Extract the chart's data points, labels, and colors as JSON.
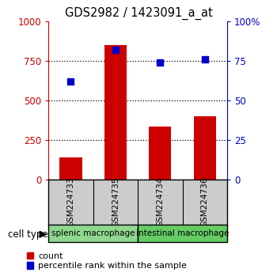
{
  "title": "GDS2982 / 1423091_a_at",
  "categories": [
    "GSM224733",
    "GSM224735",
    "GSM224734",
    "GSM224736"
  ],
  "bar_values": [
    140,
    850,
    335,
    400
  ],
  "dot_values": [
    62,
    82,
    74,
    76
  ],
  "bar_color": "#cc0000",
  "dot_color": "#0000cc",
  "ylim_left": [
    0,
    1000
  ],
  "ylim_right": [
    0,
    100
  ],
  "yticks_left": [
    0,
    250,
    500,
    750,
    1000
  ],
  "yticks_right": [
    0,
    25,
    50,
    75,
    100
  ],
  "ytick_labels_left": [
    "0",
    "250",
    "500",
    "750",
    "1000"
  ],
  "ytick_labels_right": [
    "0",
    "25",
    "50",
    "75",
    "100%"
  ],
  "cell_groups": [
    {
      "label": "splenic macrophage",
      "indices": [
        0,
        1
      ],
      "color": "#90d890"
    },
    {
      "label": "intestinal macrophage",
      "indices": [
        2,
        3
      ],
      "color": "#66cc66"
    }
  ],
  "cell_type_label": "cell type",
  "legend_count_label": "count",
  "legend_percentile_label": "percentile rank within the sample",
  "bg_color": "#ffffff",
  "plot_bg_color": "#ffffff",
  "tick_color_left": "#cc0000",
  "tick_color_right": "#0000cc",
  "xticklabel_bg": "#cccccc",
  "grid_yticks": [
    250,
    500,
    750
  ],
  "bar_width": 0.5
}
